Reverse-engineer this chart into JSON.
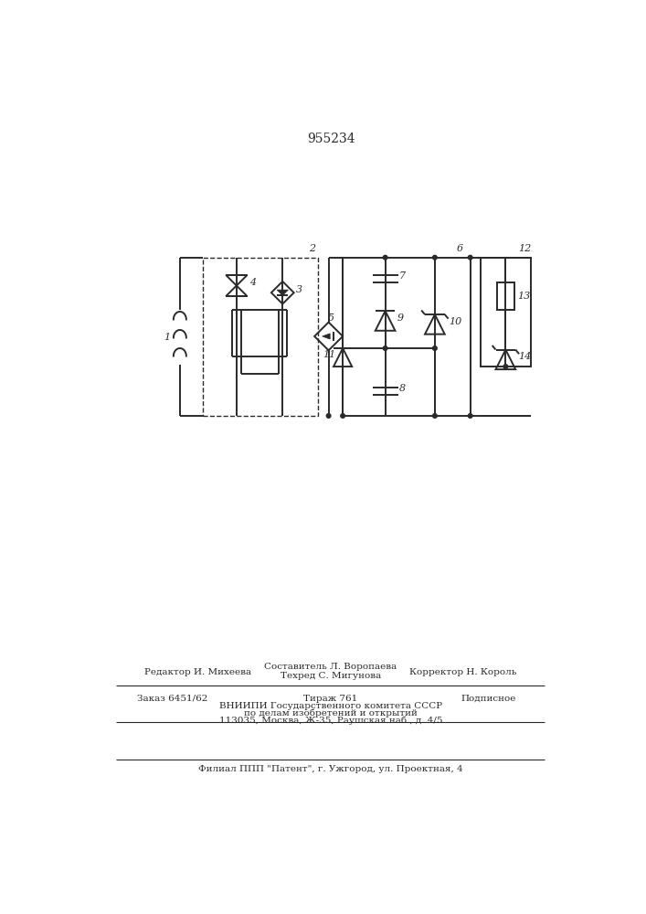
{
  "title": "955234",
  "title_fontsize": 10,
  "bg_color": "#ffffff",
  "line_color": "#2a2a2a",
  "fig_width": 7.07,
  "fig_height": 10.0,
  "footer": {
    "editor": "Редактор И. Михеева",
    "composer_line1": "Составитель Л. Воропаева",
    "composer_line2": "Техред С. Мигунова",
    "corrector": "Корректор Н. Король",
    "order": "Заказ 6451/62",
    "tirazh": "Тираж 761",
    "podpisnoe": "Подписное",
    "vnipi1": "ВНИИПИ Государственного комитета СССР",
    "vnipi2": "по делам изобретений и открытий",
    "vnipi3": "113035, Москва, Ж-35, Раушская наб., д. 4/5",
    "filial": "Филиал ППП \"Патент\", г. Ужгород, ул. Проектная, 4"
  }
}
